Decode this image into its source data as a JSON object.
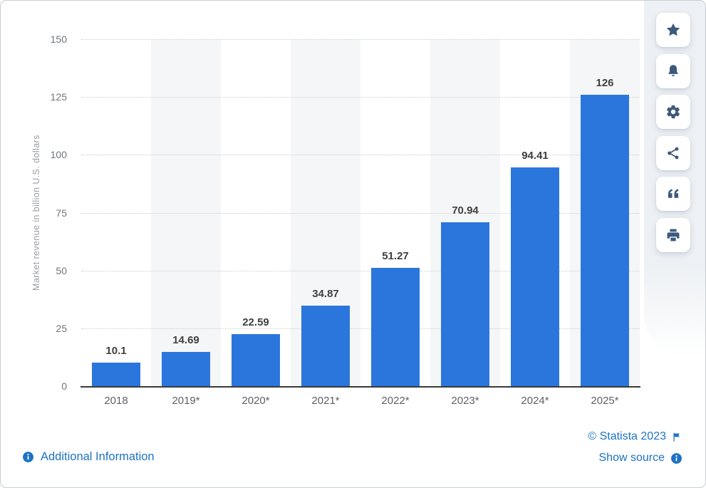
{
  "chart_data": {
    "type": "bar",
    "categories": [
      "2018",
      "2019*",
      "2020*",
      "2021*",
      "2022*",
      "2023*",
      "2024*",
      "2025*"
    ],
    "values": [
      10.1,
      14.69,
      22.59,
      34.87,
      51.27,
      70.94,
      94.41,
      126
    ],
    "value_labels": [
      "10.1",
      "14.69",
      "22.59",
      "34.87",
      "51.27",
      "70.94",
      "94.41",
      "126"
    ],
    "title": "",
    "xlabel": "",
    "ylabel": "Market revenue in billion U.S. dollars",
    "yticks": [
      0,
      25,
      50,
      75,
      100,
      125,
      150
    ],
    "ylim": [
      0,
      150
    ],
    "grid": "horizontal-dotted",
    "legend": "none",
    "bar_color": "#2b76dd",
    "stripe_color": "#f5f6f7"
  },
  "toolbar": {
    "buttons": [
      {
        "id": "favorite",
        "icon": "star-icon"
      },
      {
        "id": "alerts",
        "icon": "bell-icon"
      },
      {
        "id": "settings",
        "icon": "gear-icon"
      },
      {
        "id": "share",
        "icon": "share-icon"
      },
      {
        "id": "cite",
        "icon": "quote-icon"
      },
      {
        "id": "print",
        "icon": "printer-icon"
      }
    ]
  },
  "footer": {
    "additional_information": "Additional Information",
    "copyright": "© Statista 2023",
    "show_source": "Show source"
  },
  "colors": {
    "bar": "#2b76dd",
    "link": "#1d72c4",
    "toolbar_icon": "#3c5a7c"
  }
}
